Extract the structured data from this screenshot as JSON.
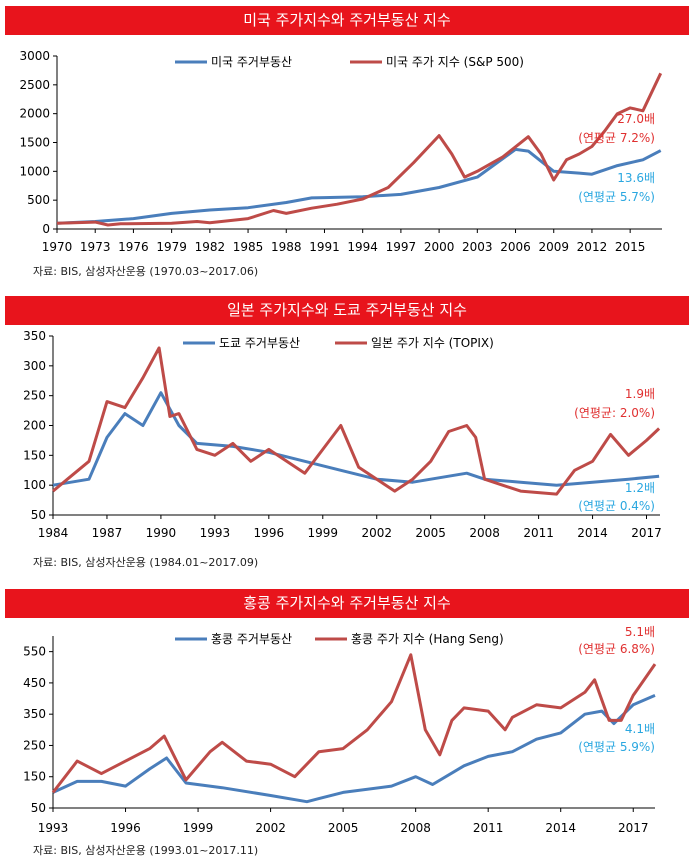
{
  "chart_data": [
    {
      "type": "line",
      "title": "미국 주가지수와 주거부동산 지수",
      "source": "자료: BIS, 삼성자산운용 (1970.03~2017.06)",
      "xlim": [
        1970,
        2017.5
      ],
      "ylim": [
        0,
        3000
      ],
      "yticks": [
        "0",
        "500",
        "1000",
        "1500",
        "2000",
        "2500",
        "3000"
      ],
      "xticks": [
        "1970",
        "1973",
        "1976",
        "1979",
        "1982",
        "1985",
        "1988",
        "1991",
        "1994",
        "1997",
        "2000",
        "2003",
        "2006",
        "2009",
        "2012",
        "2015"
      ],
      "series": [
        {
          "name": "미국 주거부동산",
          "color": "#4a7ebb",
          "x": [
            1970,
            1973,
            1976,
            1979,
            1982,
            1985,
            1988,
            1990,
            1991,
            1994,
            1997,
            2000,
            2003,
            2006,
            2007,
            2009,
            2011,
            2012,
            2014,
            2016,
            2017.4
          ],
          "y": [
            100,
            130,
            180,
            270,
            330,
            370,
            460,
            540,
            545,
            560,
            600,
            720,
            900,
            1380,
            1350,
            1000,
            970,
            950,
            1100,
            1200,
            1360
          ]
        },
        {
          "name": "미국 주가 지수 (S&P 500)",
          "color": "#be4b48",
          "x": [
            1970,
            1973,
            1974,
            1975,
            1979,
            1981,
            1982,
            1985,
            1987,
            1988,
            1990,
            1992,
            1994,
            1996,
            1998,
            2000,
            2001,
            2002,
            2003,
            2005,
            2007,
            2008,
            2009,
            2010,
            2011,
            2012,
            2013,
            2014,
            2015,
            2016,
            2017.4
          ],
          "y": [
            100,
            120,
            70,
            90,
            100,
            130,
            110,
            180,
            320,
            270,
            360,
            430,
            520,
            720,
            1150,
            1620,
            1300,
            900,
            1000,
            1250,
            1600,
            1300,
            850,
            1200,
            1300,
            1430,
            1700,
            2000,
            2100,
            2050,
            2700
          ]
        }
      ],
      "annotations": [
        {
          "text": "27.0배",
          "color": "#e03030"
        },
        {
          "text": "(연평균 7.2%)",
          "color": "#e03030"
        },
        {
          "text": "13.6배",
          "color": "#2aa7e0"
        },
        {
          "text": "(연평균 5.7%)",
          "color": "#2aa7e0"
        }
      ]
    },
    {
      "type": "line",
      "title": "일본 주가지수와 도쿄 주거부동산 지수",
      "source": "자료: BIS, 삼성자산운용 (1984.01~2017.09)",
      "xlim": [
        1984,
        2017.75
      ],
      "ylim": [
        50,
        350
      ],
      "yticks": [
        "50",
        "100",
        "150",
        "200",
        "250",
        "300",
        "350"
      ],
      "xticks": [
        "1984",
        "1987",
        "1990",
        "1993",
        "1996",
        "1999",
        "2002",
        "2005",
        "2008",
        "2011",
        "2014",
        "2017"
      ],
      "series": [
        {
          "name": "도쿄 주거부동산",
          "color": "#4a7ebb",
          "x": [
            1984,
            1986,
            1987,
            1988,
            1989,
            1990,
            1991,
            1992,
            1994,
            1996,
            1998,
            2000,
            2002,
            2004,
            2006,
            2007,
            2008,
            2010,
            2012,
            2014,
            2016,
            2017.7
          ],
          "y": [
            100,
            110,
            180,
            220,
            200,
            255,
            200,
            170,
            165,
            155,
            140,
            125,
            110,
            105,
            115,
            120,
            110,
            105,
            100,
            105,
            110,
            115
          ]
        },
        {
          "name": "일본 주가 지수 (TOPIX)",
          "color": "#be4b48",
          "x": [
            1984,
            1985,
            1986,
            1987,
            1988,
            1989,
            1989.9,
            1990.5,
            1991,
            1992,
            1993,
            1994,
            1995,
            1996,
            1998,
            1999,
            2000,
            2001,
            2003,
            2004,
            2005,
            2006,
            2007,
            2007.5,
            2008,
            2009,
            2010,
            2012,
            2013,
            2014,
            2015,
            2016,
            2017,
            2017.7
          ],
          "y": [
            90,
            115,
            140,
            240,
            230,
            280,
            330,
            215,
            220,
            160,
            150,
            170,
            140,
            160,
            120,
            160,
            200,
            130,
            90,
            110,
            140,
            190,
            200,
            180,
            110,
            100,
            90,
            85,
            125,
            140,
            185,
            150,
            175,
            195
          ]
        }
      ],
      "annotations": [
        {
          "text": "1.9배",
          "color": "#e03030"
        },
        {
          "text": "(연평균: 2.0%)",
          "color": "#e03030"
        },
        {
          "text": "1.2배",
          "color": "#2aa7e0"
        },
        {
          "text": "(연평균  0.4%)",
          "color": "#2aa7e0"
        }
      ]
    },
    {
      "type": "line",
      "title": "홍콩 주가지수와 주거부동산 지수",
      "source": "자료: BIS, 삼성자산운용 (1993.01~2017.11)",
      "xlim": [
        1993,
        2017.9
      ],
      "ylim": [
        50,
        600
      ],
      "yticks": [
        "50",
        "150",
        "250",
        "350",
        "450",
        "550"
      ],
      "xticks": [
        "1993",
        "1996",
        "1999",
        "2002",
        "2005",
        "2008",
        "2011",
        "2014",
        "2017"
      ],
      "series": [
        {
          "name": "홍콩 주거부동산",
          "color": "#4a7ebb",
          "x": [
            1993,
            1994,
            1995,
            1996,
            1997,
            1997.7,
            1998.5,
            2000,
            2002,
            2003.5,
            2004,
            2005,
            2007,
            2008,
            2008.7,
            2010,
            2011,
            2012,
            2013,
            2014,
            2015,
            2015.7,
            2016.2,
            2017,
            2017.9
          ],
          "y": [
            100,
            135,
            135,
            120,
            175,
            210,
            130,
            115,
            90,
            70,
            80,
            100,
            120,
            150,
            125,
            185,
            215,
            230,
            270,
            290,
            350,
            360,
            320,
            380,
            410
          ]
        },
        {
          "name": "홍콩 주가 지수 (Hang Seng)",
          "color": "#be4b48",
          "x": [
            1993,
            1994,
            1995,
            1996,
            1997,
            1997.6,
            1998.5,
            1999.5,
            2000,
            2001,
            2002,
            2003,
            2004,
            2005,
            2006,
            2007,
            2007.8,
            2008.4,
            2009,
            2009.5,
            2010,
            2011,
            2011.7,
            2012,
            2013,
            2014,
            2015,
            2015.4,
            2016,
            2016.5,
            2017,
            2017.9
          ],
          "y": [
            100,
            200,
            160,
            200,
            240,
            280,
            140,
            230,
            260,
            200,
            190,
            150,
            230,
            240,
            300,
            390,
            540,
            300,
            220,
            330,
            370,
            360,
            300,
            340,
            380,
            370,
            420,
            460,
            330,
            330,
            410,
            510
          ]
        }
      ],
      "annotations": [
        {
          "text": "5.1배",
          "color": "#e03030"
        },
        {
          "text": "(연평균 6.8%)",
          "color": "#e03030"
        },
        {
          "text": "4.1배",
          "color": "#2aa7e0"
        },
        {
          "text": "(연평균 5.9%)",
          "color": "#2aa7e0"
        }
      ]
    }
  ]
}
